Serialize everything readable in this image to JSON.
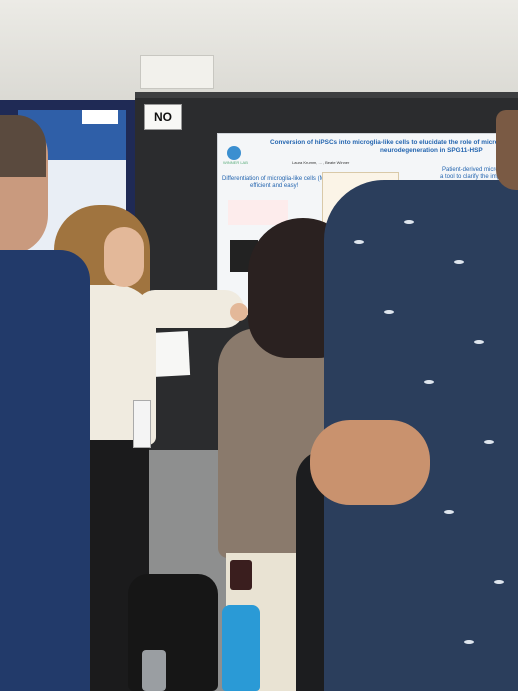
{
  "scene": {
    "booth_sign": "NO",
    "poster": {
      "title_line1": "Conversion of hiPSCs into microglia-like cells to elucidate the role of microglia",
      "title_line2": "neurodegeneration in SPG11-HSP",
      "authors": "Laura Krumm, ... , Beate Winner",
      "section_left": "Differentiation of microglia-like cells (MGL)",
      "section_left_sub": "efficient and easy!",
      "section_right": "Patient-derived microglia",
      "section_right_sub": "a tool to clarify the impact",
      "section_right_sub2": "neurodegeneration",
      "caption_right": "Expression profile of SPG11 and added ...",
      "logo_text": "WINNER LAB"
    }
  }
}
